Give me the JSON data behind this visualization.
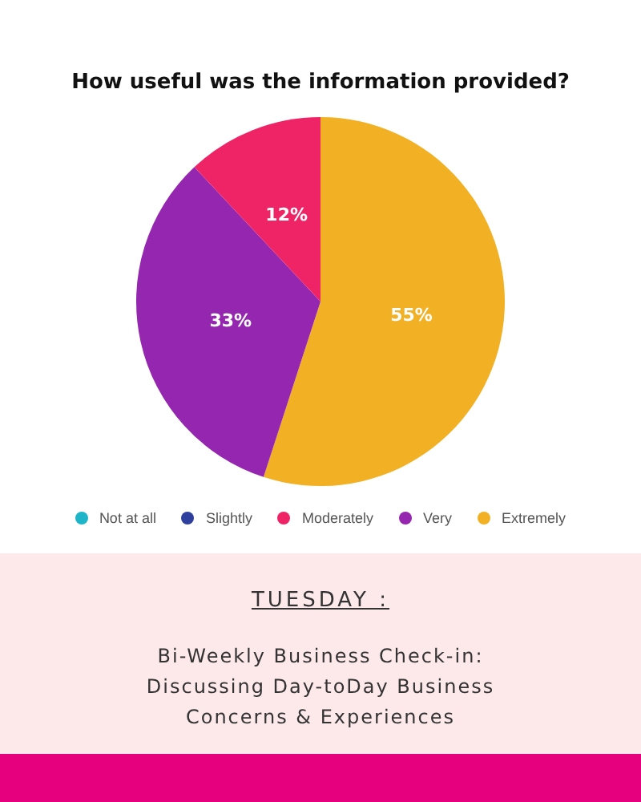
{
  "chart_data": {
    "type": "pie",
    "title": "How useful was the information provided?",
    "categories": [
      "Not at all",
      "Slightly",
      "Moderately",
      "Very",
      "Extremely"
    ],
    "values": [
      0,
      0,
      12,
      33,
      55
    ],
    "colors": [
      "#1fb5c8",
      "#2e3f9e",
      "#ee2467",
      "#9526b0",
      "#f2b124"
    ],
    "value_labels": [
      null,
      null,
      "12%",
      "33%",
      "55%"
    ],
    "legend": "bottom",
    "annotations": [
      "TUESDAY :",
      "Bi-Weekly Business Check-in: Discussing Day-toDay Business Concerns & Experiences"
    ]
  }
}
